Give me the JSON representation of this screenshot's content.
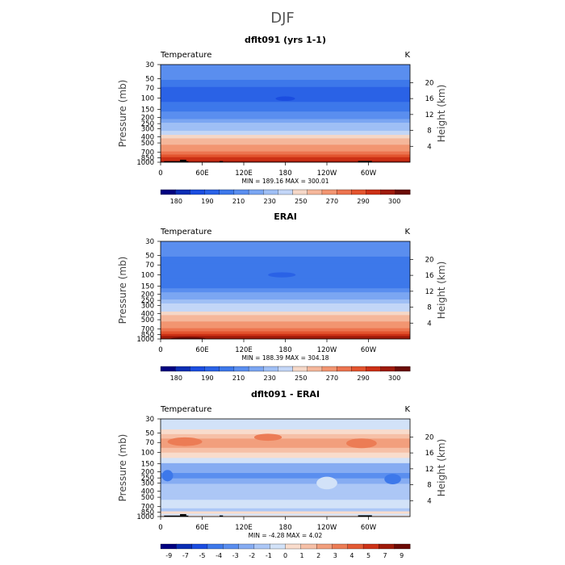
{
  "figure_title": "DJF",
  "chart_data": [
    {
      "type": "heatmap",
      "title": "dflt091 (yrs 1-1)",
      "variable": "Temperature",
      "units": "K",
      "ylabel": "Pressure (mb)",
      "y2label": "Height (km)",
      "x_ticks": [
        "0",
        "60E",
        "120E",
        "180",
        "120W",
        "60W"
      ],
      "x_values": [
        0,
        60,
        120,
        180,
        240,
        300
      ],
      "xlim": [
        0,
        360
      ],
      "p_ticks": [
        "30",
        "50",
        "70",
        "100",
        "150",
        "200",
        "250",
        "300",
        "400",
        "500",
        "700",
        "850",
        "1000"
      ],
      "p_values": [
        30,
        50,
        70,
        100,
        150,
        200,
        250,
        300,
        400,
        500,
        700,
        850,
        1000
      ],
      "p_range": [
        30,
        1000
      ],
      "height_ticks": [
        "20",
        "16",
        "12",
        "8",
        "4"
      ],
      "height_values": [
        20,
        16,
        12,
        8,
        4
      ],
      "stats": "MIN = 189.16   MAX = 300.01",
      "min": 189.16,
      "max": 300.01,
      "colorbar_labels": [
        "180",
        "190",
        "210",
        "230",
        "250",
        "270",
        "290",
        "300"
      ],
      "bands": [
        {
          "p": 30,
          "v": 212
        },
        {
          "p": 45,
          "v": 210
        },
        {
          "p": 60,
          "v": 204
        },
        {
          "p": 75,
          "v": 198
        },
        {
          "p": 90,
          "v": 196
        },
        {
          "p": 105,
          "v": 196
        },
        {
          "p": 125,
          "v": 200
        },
        {
          "p": 150,
          "v": 206
        },
        {
          "p": 175,
          "v": 212
        },
        {
          "p": 200,
          "v": 218
        },
        {
          "p": 225,
          "v": 224
        },
        {
          "p": 260,
          "v": 230
        },
        {
          "p": 300,
          "v": 238
        },
        {
          "p": 350,
          "v": 246
        },
        {
          "p": 400,
          "v": 254
        },
        {
          "p": 450,
          "v": 260
        },
        {
          "p": 500,
          "v": 265
        },
        {
          "p": 570,
          "v": 271
        },
        {
          "p": 640,
          "v": 276
        },
        {
          "p": 720,
          "v": 281
        },
        {
          "p": 800,
          "v": 286
        },
        {
          "p": 870,
          "v": 290
        },
        {
          "p": 930,
          "v": 293
        },
        {
          "p": 980,
          "v": 296
        }
      ],
      "blobs": [
        {
          "lon": 180,
          "p": 102,
          "lon_halfwidth": 14,
          "p_halfheight": 4,
          "v": 188
        }
      ],
      "terrain": [
        {
          "lon0": 5,
          "lon1": 40,
          "p": 965
        },
        {
          "lon0": 28,
          "lon1": 37,
          "p": 915
        },
        {
          "lon0": 85,
          "lon1": 90,
          "p": 960
        },
        {
          "lon0": 285,
          "lon1": 305,
          "p": 955
        }
      ]
    },
    {
      "type": "heatmap",
      "title": "ERAI",
      "variable": "Temperature",
      "units": "K",
      "ylabel": "Pressure (mb)",
      "y2label": "Height (km)",
      "x_ticks": [
        "0",
        "60E",
        "120E",
        "180",
        "120W",
        "60W"
      ],
      "x_values": [
        0,
        60,
        120,
        180,
        240,
        300
      ],
      "xlim": [
        0,
        360
      ],
      "p_ticks": [
        "30",
        "50",
        "70",
        "100",
        "150",
        "200",
        "250",
        "300",
        "400",
        "500",
        "700",
        "850",
        "1000"
      ],
      "p_values": [
        30,
        50,
        70,
        100,
        150,
        200,
        250,
        300,
        400,
        500,
        700,
        850,
        1000
      ],
      "p_range": [
        30,
        1000
      ],
      "height_ticks": [
        "20",
        "16",
        "12",
        "8",
        "4"
      ],
      "height_values": [
        20,
        16,
        12,
        8,
        4
      ],
      "stats": "MIN = 188.39   MAX = 304.18",
      "min": 188.39,
      "max": 304.18,
      "colorbar_labels": [
        "180",
        "190",
        "210",
        "230",
        "250",
        "270",
        "290",
        "300"
      ],
      "bands": [
        {
          "p": 30,
          "v": 215
        },
        {
          "p": 45,
          "v": 212
        },
        {
          "p": 60,
          "v": 207
        },
        {
          "p": 75,
          "v": 202
        },
        {
          "p": 90,
          "v": 200
        },
        {
          "p": 105,
          "v": 200
        },
        {
          "p": 125,
          "v": 203
        },
        {
          "p": 150,
          "v": 208
        },
        {
          "p": 175,
          "v": 214
        },
        {
          "p": 200,
          "v": 220
        },
        {
          "p": 225,
          "v": 226
        },
        {
          "p": 260,
          "v": 232
        },
        {
          "p": 300,
          "v": 240
        },
        {
          "p": 350,
          "v": 248
        },
        {
          "p": 400,
          "v": 255
        },
        {
          "p": 450,
          "v": 261
        },
        {
          "p": 500,
          "v": 266
        },
        {
          "p": 570,
          "v": 272
        },
        {
          "p": 640,
          "v": 277
        },
        {
          "p": 720,
          "v": 282
        },
        {
          "p": 800,
          "v": 287
        },
        {
          "p": 870,
          "v": 291
        },
        {
          "p": 930,
          "v": 295
        },
        {
          "p": 980,
          "v": 298
        }
      ],
      "blobs": [
        {
          "lon": 175,
          "p": 100,
          "lon_halfwidth": 20,
          "p_halfheight": 5,
          "v": 191
        },
        {
          "lon": 40,
          "p": 990,
          "lon_halfwidth": 25,
          "p_halfheight": 15,
          "v": 302
        }
      ],
      "terrain": []
    },
    {
      "type": "heatmap",
      "title": "dflt091 - ERAI",
      "variable": "Temperature",
      "units": "K",
      "ylabel": "Pressure (mb)",
      "y2label": "Height (km)",
      "x_ticks": [
        "0",
        "60E",
        "120E",
        "180",
        "120W",
        "60W"
      ],
      "x_values": [
        0,
        60,
        120,
        180,
        240,
        300
      ],
      "xlim": [
        0,
        360
      ],
      "p_ticks": [
        "30",
        "50",
        "70",
        "100",
        "150",
        "200",
        "250",
        "300",
        "400",
        "500",
        "700",
        "850",
        "1000"
      ],
      "p_values": [
        30,
        50,
        70,
        100,
        150,
        200,
        250,
        300,
        400,
        500,
        700,
        850,
        1000
      ],
      "p_range": [
        30,
        1000
      ],
      "height_ticks": [
        "20",
        "16",
        "12",
        "8",
        "4"
      ],
      "height_values": [
        20,
        16,
        12,
        8,
        4
      ],
      "stats": "MIN =   -4.28   MAX =    4.02",
      "min": -4.28,
      "max": 4.02,
      "colorbar_labels": [
        "-9",
        "-7",
        "-5",
        "-4",
        "-3",
        "-2",
        "-1",
        "0",
        "1",
        "2",
        "3",
        "4",
        "5",
        "7",
        "9"
      ],
      "bands": [
        {
          "p": 30,
          "v": -0.8
        },
        {
          "p": 40,
          "v": -0.3
        },
        {
          "p": 48,
          "v": 0.6
        },
        {
          "p": 56,
          "v": 1.6
        },
        {
          "p": 66,
          "v": 2.6
        },
        {
          "p": 78,
          "v": 2.2
        },
        {
          "p": 92,
          "v": 1.2
        },
        {
          "p": 110,
          "v": 0.2
        },
        {
          "p": 135,
          "v": -0.8
        },
        {
          "p": 160,
          "v": -2.2
        },
        {
          "p": 190,
          "v": -3.0
        },
        {
          "p": 230,
          "v": -3.2
        },
        {
          "p": 280,
          "v": -2.6
        },
        {
          "p": 340,
          "v": -2.0
        },
        {
          "p": 410,
          "v": -1.4
        },
        {
          "p": 500,
          "v": -1.2
        },
        {
          "p": 600,
          "v": -0.6
        },
        {
          "p": 700,
          "v": -0.2
        },
        {
          "p": 790,
          "v": -1.2
        },
        {
          "p": 870,
          "v": 0.2
        },
        {
          "p": 940,
          "v": -0.5
        },
        {
          "p": 985,
          "v": 0.4
        }
      ],
      "blobs": [
        {
          "lon": 35,
          "p": 68,
          "lon_halfwidth": 25,
          "p_halfheight": 8,
          "v": 3.6
        },
        {
          "lon": 290,
          "p": 72,
          "lon_halfwidth": 22,
          "p_halfheight": 10,
          "v": 3.4
        },
        {
          "lon": 155,
          "p": 58,
          "lon_halfwidth": 20,
          "p_halfheight": 5,
          "v": 3.2
        },
        {
          "lon": 10,
          "p": 230,
          "lon_halfwidth": 8,
          "p_halfheight": 40,
          "v": -4.2
        },
        {
          "lon": 335,
          "p": 260,
          "lon_halfwidth": 12,
          "p_halfheight": 40,
          "v": -4.2
        },
        {
          "lon": 240,
          "p": 300,
          "lon_halfwidth": 15,
          "p_halfheight": 60,
          "v": -0.6
        }
      ],
      "terrain": [
        {
          "lon0": 5,
          "lon1": 40,
          "p": 965
        },
        {
          "lon0": 28,
          "lon1": 37,
          "p": 915
        },
        {
          "lon0": 85,
          "lon1": 90,
          "p": 960
        },
        {
          "lon0": 285,
          "lon1": 305,
          "p": 955
        }
      ]
    }
  ],
  "palettes": {
    "temperature": [
      "#000080",
      "#0a2eb4",
      "#1b4de0",
      "#2a62e6",
      "#3d78ea",
      "#5a8eef",
      "#7ba6f2",
      "#9fbff5",
      "#c3d6f7",
      "#f5d7c7",
      "#f5b79b",
      "#f29571",
      "#ec744f",
      "#e3542e",
      "#cc3015",
      "#9e1a0a",
      "#6b0a05"
    ],
    "difference": [
      "#000080",
      "#0a2eb4",
      "#1b4de0",
      "#3d78ea",
      "#5a8eef",
      "#86acf2",
      "#acc7f6",
      "#d2e2f8",
      "#f9dccc",
      "#f6c0a7",
      "#f29f7d",
      "#ec7c55",
      "#e35a34",
      "#cc3218",
      "#9e1a0a",
      "#6b0a05"
    ]
  },
  "thresholds": {
    "temperature": [
      180,
      185,
      190,
      200,
      210,
      220,
      230,
      240,
      250,
      260,
      270,
      280,
      285,
      290,
      295,
      300
    ],
    "difference": [
      -9,
      -7,
      -5,
      -4,
      -3,
      -2,
      -1,
      0,
      1,
      2,
      3,
      4,
      5,
      7,
      9
    ]
  }
}
